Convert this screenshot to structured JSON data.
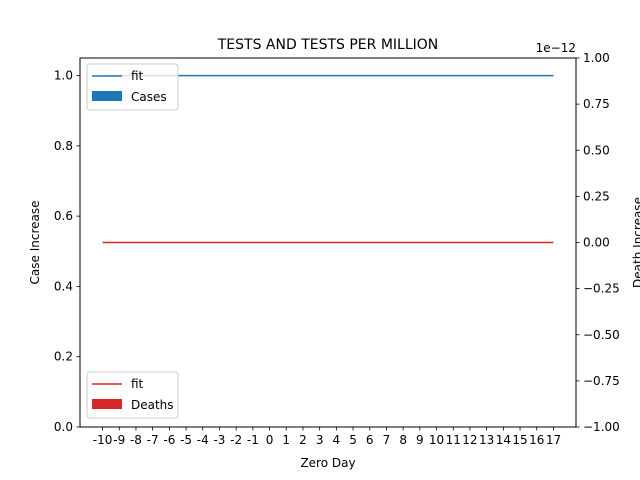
{
  "chart_data": {
    "type": "line",
    "title": "TESTS AND TESTS PER MILLION",
    "xlabel": "Zero Day",
    "ylabel": "Case Increase",
    "ylabel_right": "Death Increase",
    "x": [
      -10,
      -9,
      -8,
      -7,
      -6,
      -5,
      -4,
      -3,
      -2,
      -1,
      0,
      1,
      2,
      3,
      4,
      5,
      6,
      7,
      8,
      9,
      10,
      11,
      12,
      13,
      14,
      15,
      16,
      17
    ],
    "xlim": [
      -11.35,
      18.35
    ],
    "ylim": [
      0,
      1.05
    ],
    "yticks": [
      0.0,
      0.2,
      0.4,
      0.6,
      0.8,
      1.0
    ],
    "ylim_right": [
      -1.0,
      1.0
    ],
    "yticks_right": [
      -1.0,
      -0.75,
      -0.5,
      -0.25,
      0.0,
      0.25,
      0.5,
      0.75,
      1.0
    ],
    "right_axis_offset_text": "1e−12",
    "series": [
      {
        "name": "fit",
        "axis": "left",
        "kind": "line",
        "color": "#1f77b4",
        "values": [
          1,
          1,
          1,
          1,
          1,
          1,
          1,
          1,
          1,
          1,
          1,
          1,
          1,
          1,
          1,
          1,
          1,
          1,
          1,
          1,
          1,
          1,
          1,
          1,
          1,
          1,
          1,
          1
        ]
      },
      {
        "name": "Cases",
        "axis": "left",
        "kind": "bar",
        "color": "#1f77b4",
        "values": [
          0,
          0,
          0,
          0,
          0,
          0,
          0,
          0,
          0,
          0,
          0,
          0,
          0,
          0,
          0,
          0,
          0,
          0,
          0,
          0,
          0,
          0,
          0,
          0,
          0,
          0,
          0,
          0
        ]
      },
      {
        "name": "fit",
        "axis": "right",
        "kind": "line",
        "color": "#d62728",
        "values": [
          0,
          0,
          0,
          0,
          0,
          0,
          0,
          0,
          0,
          0,
          0,
          0,
          0,
          0,
          0,
          0,
          0,
          0,
          0,
          0,
          0,
          0,
          0,
          0,
          0,
          0,
          0,
          0
        ]
      },
      {
        "name": "Deaths",
        "axis": "right",
        "kind": "bar",
        "color": "#d62728",
        "values": [
          0,
          0,
          0,
          0,
          0,
          0,
          0,
          0,
          0,
          0,
          0,
          0,
          0,
          0,
          0,
          0,
          0,
          0,
          0,
          0,
          0,
          0,
          0,
          0,
          0,
          0,
          0,
          0
        ]
      }
    ],
    "legends": [
      {
        "position": "upper-left",
        "entries": [
          "fit",
          "Cases"
        ]
      },
      {
        "position": "lower-left",
        "entries": [
          "fit",
          "Deaths"
        ]
      }
    ],
    "grid": false
  }
}
